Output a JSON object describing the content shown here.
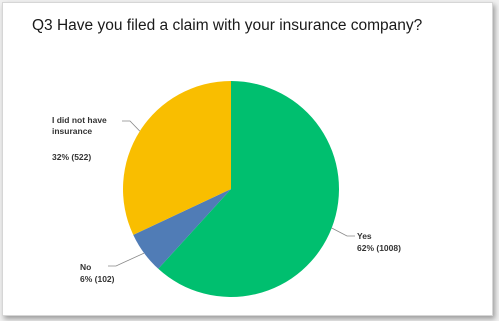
{
  "chart_data": {
    "type": "pie",
    "title": "Q3 Have you filed a claim with your insurance company?",
    "slices": [
      {
        "label": "Yes",
        "value_text": "62% (1008)",
        "percent": 62,
        "count": 1008,
        "color": "#00bf6f"
      },
      {
        "label": "No",
        "value_text": "6% (102)",
        "percent": 6,
        "count": 102,
        "color": "#507cb6"
      },
      {
        "label_lines": [
          "I did not have",
          "insurance"
        ],
        "value_text": "32% (522)",
        "percent": 32,
        "count": 522,
        "color": "#f9be00"
      }
    ]
  }
}
